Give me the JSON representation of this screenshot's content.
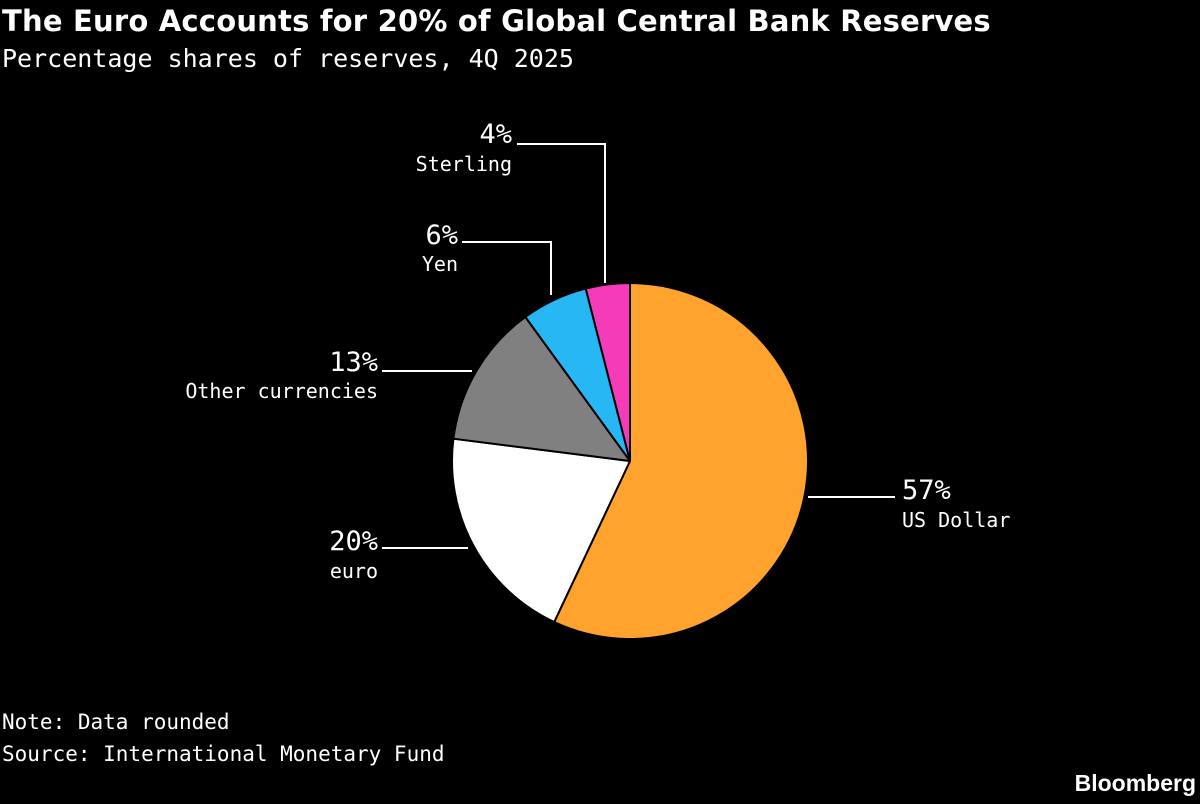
{
  "title": "The Euro Accounts for 20% of Global Central Bank Reserves",
  "subtitle": "Percentage shares of reserves, 4Q 2025",
  "note": "Note: Data rounded",
  "source": "Source: International Monetary Fund",
  "brand": "Bloomberg",
  "chart_data": {
    "type": "pie",
    "title": "The Euro Accounts for 20% of Global Central Bank Reserves",
    "subtitle": "Percentage shares of reserves, 4Q 2025",
    "start_angle_deg": 0,
    "direction": "clockwise",
    "slices": [
      {
        "name": "US Dollar",
        "value": 57,
        "label": "57%",
        "color": "#ffa22e"
      },
      {
        "name": "euro",
        "value": 20,
        "label": "20%",
        "color": "#ffffff"
      },
      {
        "name": "Other currencies",
        "value": 13,
        "label": "13%",
        "color": "#808080"
      },
      {
        "name": "Yen",
        "value": 6,
        "label": "6%",
        "color": "#27b7f5"
      },
      {
        "name": "Sterling",
        "value": 4,
        "label": "4%",
        "color": "#f43bb8"
      }
    ]
  }
}
